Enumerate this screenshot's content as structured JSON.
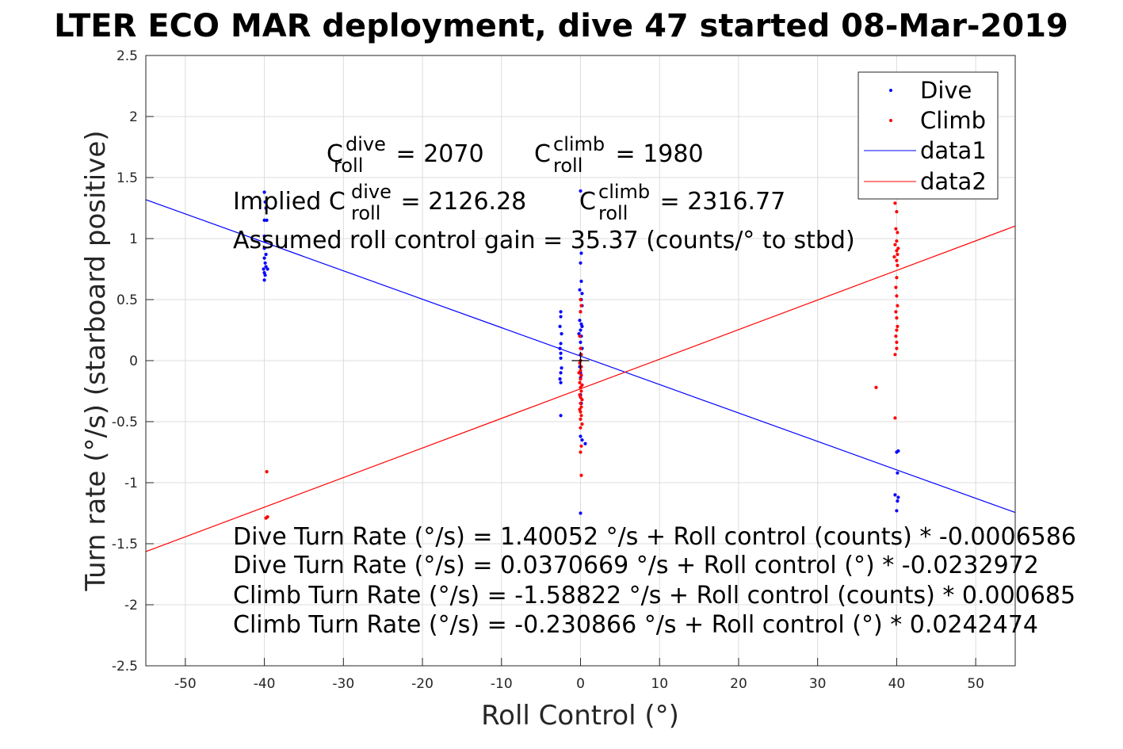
{
  "chart_data": {
    "type": "scatter",
    "title": "LTER ECO MAR deployment, dive 47 started 08-Mar-2019",
    "xlabel": "Roll Control (°)",
    "ylabel": "Turn rate (°/s) (starboard positive)",
    "xlim": [
      -55,
      55
    ],
    "ylim": [
      -2.5,
      2.5
    ],
    "xticks": [
      "-50",
      "-40",
      "-30",
      "-20",
      "-10",
      "0",
      "10",
      "20",
      "30",
      "40",
      "50"
    ],
    "yticks": [
      "-2.5",
      "-2",
      "-1.5",
      "-1",
      "-0.5",
      "0",
      "0.5",
      "1",
      "1.5",
      "2",
      "2.5"
    ],
    "grid": true,
    "legend_location": "top-right",
    "series": [
      {
        "name": "Dive",
        "kind": "points",
        "color": "#0000ff",
        "points": [
          [
            -40,
            1.38
          ],
          [
            -39.9,
            1.3
          ],
          [
            -39.8,
            1.25
          ],
          [
            -40,
            1.15
          ],
          [
            -39.7,
            1.15
          ],
          [
            -40,
            1.02
          ],
          [
            -39.9,
            0.98
          ],
          [
            -40,
            0.92
          ],
          [
            -39.8,
            0.87
          ],
          [
            -40,
            0.84
          ],
          [
            -39.9,
            0.8
          ],
          [
            -39.8,
            0.77
          ],
          [
            -40.1,
            0.75
          ],
          [
            -39.6,
            0.75
          ],
          [
            -40,
            0.72
          ],
          [
            -39.9,
            0.7
          ],
          [
            -40,
            0.66
          ],
          [
            -2.5,
            0.4
          ],
          [
            -2.5,
            0.36
          ],
          [
            -2.6,
            0.28
          ],
          [
            -2.4,
            0.22
          ],
          [
            -2.5,
            0.14
          ],
          [
            -2.6,
            0.1
          ],
          [
            -2.5,
            0.06
          ],
          [
            -2.5,
            0.02
          ],
          [
            -2.4,
            -0.06
          ],
          [
            -2.5,
            -0.1
          ],
          [
            -2.6,
            -0.15
          ],
          [
            -2.5,
            -0.18
          ],
          [
            -2.5,
            -0.45
          ],
          [
            0,
            1.39
          ],
          [
            0.1,
            0.88
          ],
          [
            0,
            0.8
          ],
          [
            0.1,
            0.65
          ],
          [
            -0.1,
            0.58
          ],
          [
            0.2,
            0.55
          ],
          [
            0.1,
            0.5
          ],
          [
            0.2,
            0.45
          ],
          [
            0,
            0.4
          ],
          [
            -0.1,
            0.33
          ],
          [
            0.1,
            0.3
          ],
          [
            0.2,
            0.28
          ],
          [
            0,
            0.25
          ],
          [
            -0.2,
            0.22
          ],
          [
            0.1,
            0.2
          ],
          [
            0,
            0.15
          ],
          [
            0.2,
            0.1
          ],
          [
            0,
            0.05
          ],
          [
            -0.1,
            -0.05
          ],
          [
            0,
            -0.1
          ],
          [
            0.1,
            -0.12
          ],
          [
            0,
            -0.14
          ],
          [
            0.2,
            -0.2
          ],
          [
            0,
            -0.28
          ],
          [
            0.1,
            -0.35
          ],
          [
            0,
            -0.62
          ],
          [
            0.2,
            -0.65
          ],
          [
            0.6,
            -0.68
          ],
          [
            0,
            -1.25
          ],
          [
            40,
            -0.75
          ],
          [
            40.2,
            -0.74
          ],
          [
            40.1,
            -0.92
          ],
          [
            39.8,
            -1.1
          ],
          [
            40.2,
            -1.12
          ],
          [
            40.1,
            -1.15
          ],
          [
            40,
            -1.23
          ]
        ]
      },
      {
        "name": "Climb",
        "kind": "points",
        "color": "#ff0000",
        "points": [
          [
            -39.7,
            -0.91
          ],
          [
            -39.6,
            -1.28
          ],
          [
            -39.8,
            -1.29
          ],
          [
            0,
            0.5
          ],
          [
            0.1,
            0.45
          ],
          [
            0,
            0.4
          ],
          [
            -0.1,
            0.2
          ],
          [
            0,
            0.1
          ],
          [
            0.1,
            0.05
          ],
          [
            0,
            0.0
          ],
          [
            -0.1,
            -0.02
          ],
          [
            0.1,
            -0.05
          ],
          [
            0,
            -0.08
          ],
          [
            -0.2,
            -0.1
          ],
          [
            0.1,
            -0.12
          ],
          [
            0,
            -0.15
          ],
          [
            -0.1,
            -0.18
          ],
          [
            0.2,
            -0.2
          ],
          [
            0,
            -0.22
          ],
          [
            0.1,
            -0.25
          ],
          [
            -0.1,
            -0.28
          ],
          [
            0,
            -0.3
          ],
          [
            0.2,
            -0.32
          ],
          [
            0,
            -0.35
          ],
          [
            0.1,
            -0.38
          ],
          [
            -0.1,
            -0.4
          ],
          [
            0,
            -0.42
          ],
          [
            0.1,
            -0.45
          ],
          [
            0,
            -0.48
          ],
          [
            0.2,
            -0.52
          ],
          [
            0,
            -0.55
          ],
          [
            0.1,
            -0.7
          ],
          [
            0,
            -0.75
          ],
          [
            0.1,
            -0.94
          ],
          [
            39.8,
            1.29
          ],
          [
            40,
            1.22
          ],
          [
            39.9,
            1.08
          ],
          [
            40.1,
            1.05
          ],
          [
            40,
            0.98
          ],
          [
            39.8,
            0.95
          ],
          [
            40.2,
            0.92
          ],
          [
            40,
            0.9
          ],
          [
            40.1,
            0.87
          ],
          [
            39.7,
            0.85
          ],
          [
            40,
            0.82
          ],
          [
            40.1,
            0.78
          ],
          [
            40,
            0.68
          ],
          [
            39.9,
            0.6
          ],
          [
            40,
            0.53
          ],
          [
            40.1,
            0.45
          ],
          [
            39.9,
            0.4
          ],
          [
            40,
            0.35
          ],
          [
            40.1,
            0.28
          ],
          [
            40,
            0.25
          ],
          [
            39.9,
            0.2
          ],
          [
            40,
            0.15
          ],
          [
            40,
            0.1
          ],
          [
            39.8,
            0.05
          ],
          [
            37.4,
            -0.22
          ],
          [
            39.8,
            -0.47
          ]
        ]
      },
      {
        "name": "data1",
        "kind": "line",
        "color": "#0000ff",
        "intercept": 0.0370669,
        "slope": -0.0232972
      },
      {
        "name": "data2",
        "kind": "line",
        "color": "#ff0000",
        "intercept": -0.230866,
        "slope": 0.0242474
      }
    ],
    "marker": {
      "x": 0,
      "y": 0,
      "symbol": "+"
    },
    "annotations": {
      "c_dive": {
        "base": "C",
        "sup": "dive",
        "sub": "roll",
        "rest": " = 2070"
      },
      "c_climb": {
        "base": "C",
        "sup": "climb",
        "sub": "roll",
        "rest": " = 1980"
      },
      "implied_dive": {
        "prefix": "Implied C",
        "sup": "dive",
        "sub": "roll",
        "rest": " = 2126.28"
      },
      "implied_climb": {
        "base": "C",
        "sup": "climb",
        "sub": "roll",
        "rest": " = 2316.77"
      },
      "gain": "Assumed roll control gain = 35.37 (counts/° to stbd)",
      "equations": [
        "Dive Turn Rate (°/s) = 1.40052 °/s + Roll control (counts) * -0.0006586",
        "Dive Turn Rate (°/s) = 0.0370669 °/s + Roll control (°) * -0.0232972",
        "Climb Turn Rate (°/s) = -1.58822 °/s + Roll control (counts) * 0.000685",
        "Climb Turn Rate (°/s) = -0.230866 °/s + Roll control (°) * 0.0242474"
      ]
    }
  }
}
